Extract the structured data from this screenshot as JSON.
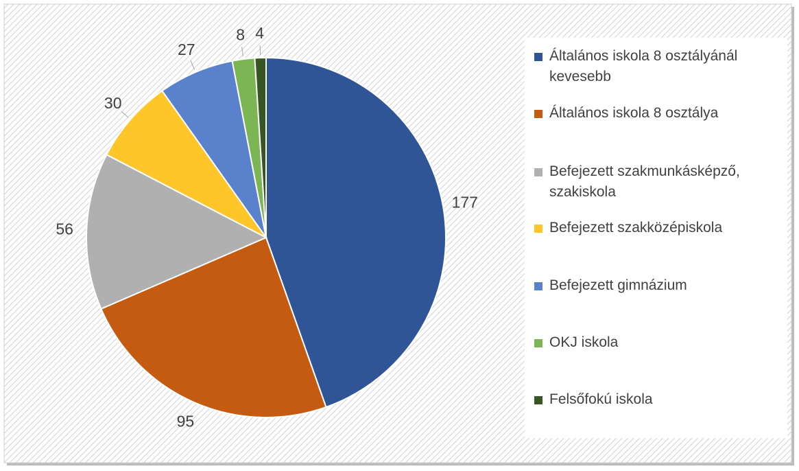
{
  "chart_data": {
    "type": "pie",
    "categories": [
      "Általános iskola 8 osztályánál kevesebb",
      "Általános iskola 8 osztálya",
      "Befejezett szakmunkásképző, szakiskola",
      "Befejezett  szakközépiskola",
      "Befejezett gimnázium",
      "OKJ iskola",
      "Felsőfokú iskola"
    ],
    "values": [
      177,
      95,
      56,
      30,
      27,
      8,
      4
    ],
    "colors": [
      "#2f5597",
      "#c55a11",
      "#b0b0b0",
      "#ffc62a",
      "#5a82cc",
      "#7cb554",
      "#375623"
    ],
    "legend": "right"
  }
}
